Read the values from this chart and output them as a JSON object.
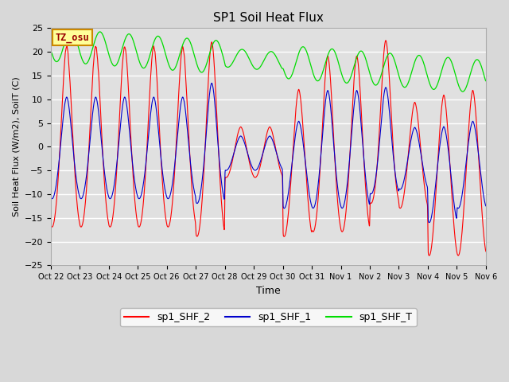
{
  "title": "SP1 Soil Heat Flux",
  "ylabel": "Soil Heat Flux (W/m2), SoilT (C)",
  "xlabel": "Time",
  "ylim": [
    -25,
    25
  ],
  "bg_color": "#e0e0e0",
  "fig_color": "#d8d8d8",
  "grid_color": "white",
  "tz_label": "TZ_osu",
  "legend_labels": [
    "sp1_SHF_2",
    "sp1_SHF_1",
    "sp1_SHF_T"
  ],
  "line_colors": [
    "#ff0000",
    "#0000cc",
    "#00dd00"
  ],
  "x_tick_labels": [
    "Oct 22",
    "Oct 23",
    "Oct 24",
    "Oct 25",
    "Oct 26",
    "Oct 27",
    "Oct 28",
    "Oct 29",
    "Oct 30",
    "Oct 31",
    "Nov 1",
    "Nov 2",
    "Nov 3",
    "Nov 4",
    "Nov 5",
    "Nov 6"
  ],
  "yticks": [
    -25,
    -20,
    -15,
    -10,
    -5,
    0,
    5,
    10,
    15,
    20,
    25
  ],
  "n_days": 15
}
